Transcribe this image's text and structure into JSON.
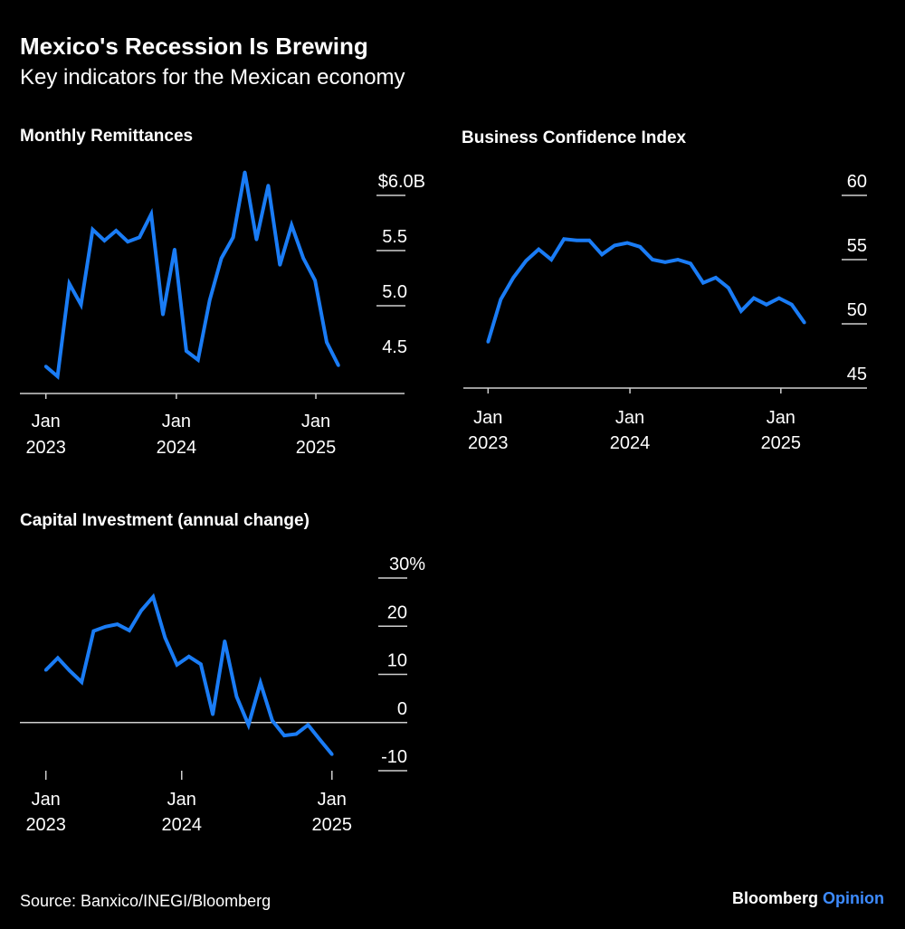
{
  "header": {
    "title": "Mexico's Recession Is Brewing",
    "subtitle": "Key indicators for the Mexican economy"
  },
  "footer": {
    "source": "Source: Banxico/INEGI/Bloomberg",
    "brand": "Bloomberg",
    "brand_suffix": "Opinion"
  },
  "colors": {
    "line": "#1a7cf5",
    "background": "#000000",
    "text": "#ffffff",
    "brand_accent": "#3d8bff"
  },
  "chart_data": [
    {
      "type": "line",
      "title": "Monthly Remittances",
      "x_start": "2023-01",
      "x_frequency": "monthly",
      "values": [
        4.45,
        4.36,
        5.2,
        5.01,
        5.69,
        5.59,
        5.68,
        5.58,
        5.62,
        5.83,
        4.92,
        5.51,
        4.59,
        4.51,
        5.05,
        5.43,
        5.62,
        6.21,
        5.6,
        6.09,
        5.37,
        5.73,
        5.43,
        5.23,
        4.67,
        4.46
      ],
      "ylim": [
        4.2,
        6.2
      ],
      "y_ticks": [
        {
          "value": 6.0,
          "label": "$6.0B"
        },
        {
          "value": 5.5,
          "label": "5.5"
        },
        {
          "value": 5.0,
          "label": "5.0"
        },
        {
          "value": 4.5,
          "label": "4.5"
        }
      ],
      "x_ticks": [
        {
          "month": 0,
          "label1": "Jan",
          "label2": "2023"
        },
        {
          "month": 12,
          "label1": "Jan",
          "label2": "2024"
        },
        {
          "month": 24,
          "label1": "Jan",
          "label2": "2025"
        }
      ],
      "grid": "y-ticks-right"
    },
    {
      "type": "line",
      "title": "Business Confidence Index",
      "x_start": "2023-01",
      "x_frequency": "monthly",
      "values": [
        48.6,
        51.9,
        53.6,
        54.9,
        55.8,
        55.0,
        56.6,
        56.5,
        56.5,
        55.4,
        56.1,
        56.3,
        56.0,
        55.0,
        54.8,
        55.0,
        54.7,
        53.2,
        53.6,
        52.8,
        51.0,
        52.0,
        51.5,
        52.0,
        51.5,
        50.1
      ],
      "ylim": [
        45,
        61
      ],
      "y_ticks": [
        {
          "value": 60,
          "label": "60"
        },
        {
          "value": 55,
          "label": "55"
        },
        {
          "value": 50,
          "label": "50"
        },
        {
          "value": 45,
          "label": "45"
        }
      ],
      "x_ticks": [
        {
          "month": 0,
          "label1": "Jan",
          "label2": "2023"
        },
        {
          "month": 12,
          "label1": "Jan",
          "label2": "2024"
        },
        {
          "month": 24,
          "label1": "Jan",
          "label2": "2025"
        }
      ],
      "grid": "y-ticks-right"
    },
    {
      "type": "line",
      "title": "Capital Investment (annual change)",
      "x_start": "2023-01",
      "x_frequency": "monthly",
      "values": [
        10.9,
        13.4,
        10.75,
        8.4,
        19.0,
        19.9,
        20.4,
        19.1,
        23.25,
        26.1,
        17.6,
        12.0,
        13.7,
        12.1,
        1.7,
        16.9,
        5.4,
        -0.5,
        8.25,
        0.4,
        -2.7,
        -2.4,
        -0.5,
        -3.6,
        -6.6
      ],
      "ylim": [
        -10,
        30
      ],
      "y_ticks": [
        {
          "value": 30,
          "label": "30%"
        },
        {
          "value": 20,
          "label": "20"
        },
        {
          "value": 10,
          "label": "10"
        },
        {
          "value": 0,
          "label": "0"
        },
        {
          "value": -10,
          "label": "-10"
        }
      ],
      "x_ticks": [
        {
          "month": 0,
          "label1": "Jan",
          "label2": "2023"
        },
        {
          "month": 12,
          "label1": "Jan",
          "label2": "2024"
        },
        {
          "month": 24,
          "label1": "Jan",
          "label2": "2025"
        }
      ],
      "grid": "y-ticks-right"
    }
  ]
}
